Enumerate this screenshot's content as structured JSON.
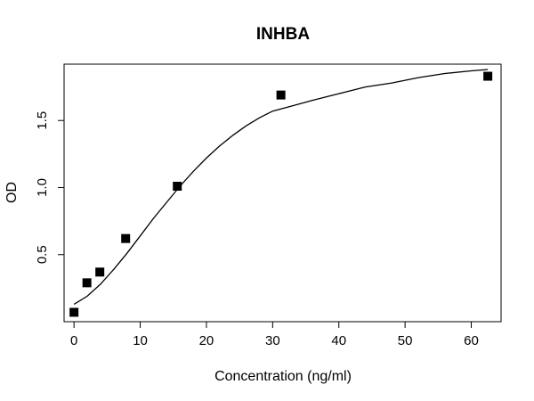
{
  "chart_data": {
    "type": "scatter",
    "title": "INHBA",
    "xlabel": "Concentration (ng/ml)",
    "ylabel": "OD",
    "xlim": [
      -1.5,
      64.5
    ],
    "ylim": [
      0,
      1.92
    ],
    "xticks": [
      0,
      10,
      20,
      30,
      40,
      50,
      60
    ],
    "xtick_labels": [
      "0",
      "10",
      "20",
      "30",
      "40",
      "50",
      "60"
    ],
    "yticks": [
      0.5,
      1.0,
      1.5
    ],
    "ytick_labels": [
      "0.5",
      "1.0",
      "1.5"
    ],
    "grid": false,
    "legend": "none",
    "series": [
      {
        "marker": "square",
        "color": "#000000",
        "x": [
          0,
          1.95,
          3.9,
          7.8,
          15.6,
          31.25,
          62.5
        ],
        "y": [
          0.07,
          0.29,
          0.37,
          0.62,
          1.01,
          1.69,
          1.83
        ]
      }
    ],
    "fit_curve": {
      "color": "#000000",
      "x": [
        0,
        2,
        4,
        6,
        8,
        10,
        12,
        14,
        16,
        18,
        20,
        22,
        24,
        26,
        28,
        30,
        33,
        36,
        40,
        44,
        48,
        52,
        56,
        60,
        62.5
      ],
      "y": [
        0.13,
        0.19,
        0.28,
        0.39,
        0.51,
        0.64,
        0.77,
        0.89,
        1.01,
        1.12,
        1.22,
        1.31,
        1.39,
        1.46,
        1.52,
        1.57,
        1.61,
        1.65,
        1.7,
        1.75,
        1.78,
        1.82,
        1.85,
        1.87,
        1.88
      ]
    }
  }
}
